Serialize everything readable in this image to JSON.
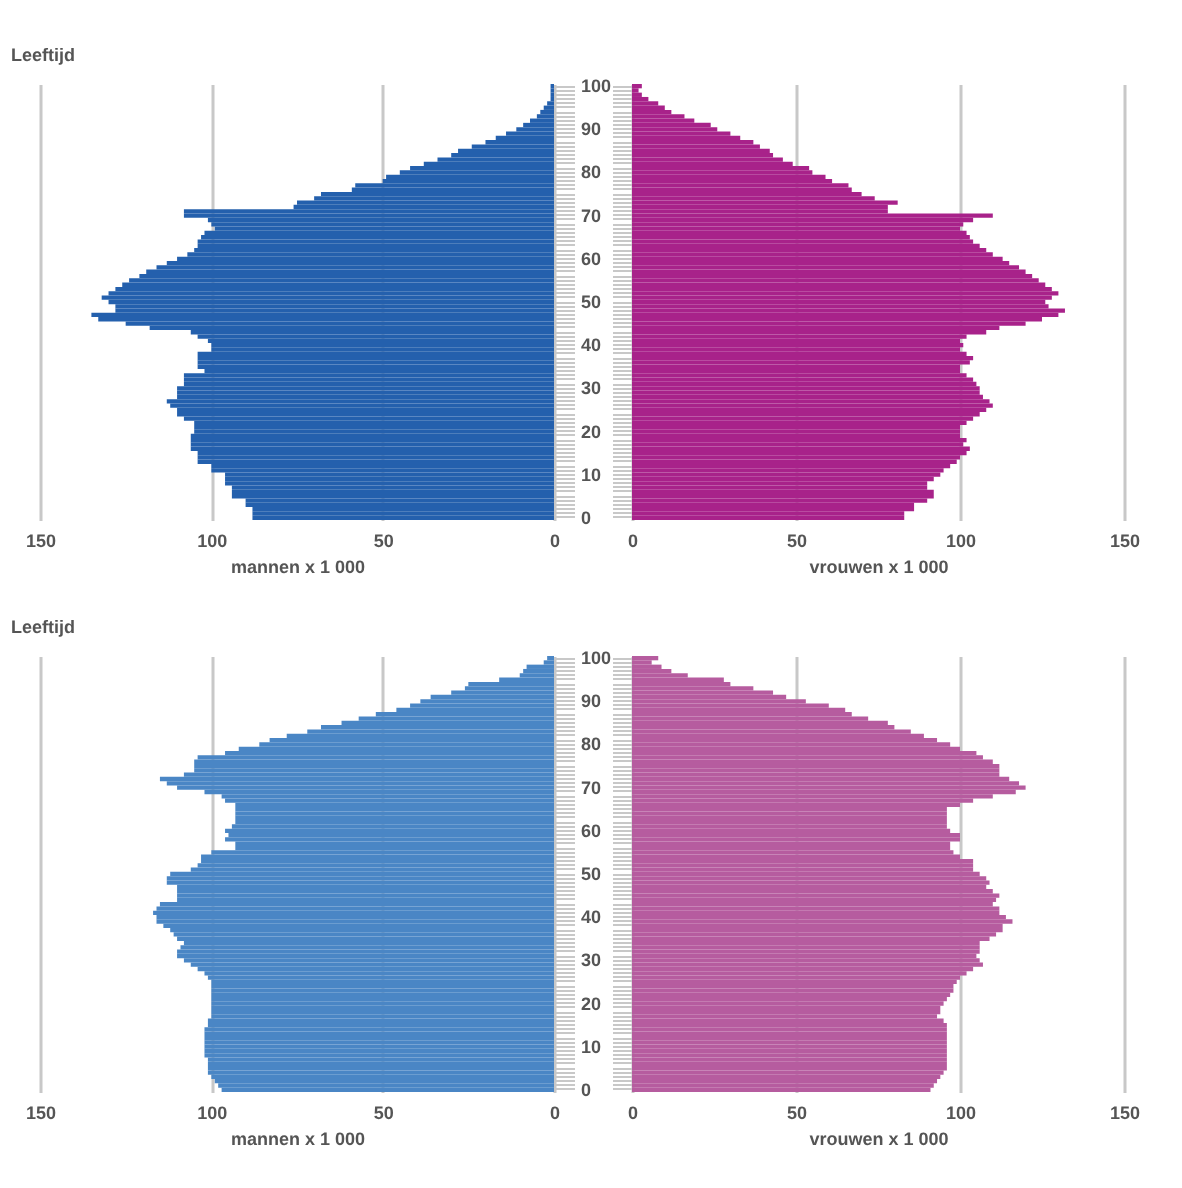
{
  "chart_data": [
    {
      "type": "bar",
      "orientation": "horizontal",
      "ylabel": "Leeftijd",
      "xlabel": "mannen x 1 000",
      "color": "#2460ad",
      "xlim": [
        150,
        0
      ],
      "xticks": [
        150,
        100,
        50,
        0
      ],
      "grid": "x",
      "categories": [
        "100",
        null,
        null,
        null,
        null,
        null,
        null,
        null,
        null,
        null,
        "90",
        null,
        null,
        null,
        null,
        null,
        null,
        null,
        null,
        null,
        "80",
        null,
        null,
        null,
        null,
        null,
        null,
        null,
        null,
        null,
        "70",
        null,
        null,
        null,
        null,
        null,
        null,
        null,
        null,
        null,
        "60",
        null,
        null,
        null,
        null,
        null,
        null,
        null,
        null,
        null,
        "50",
        null,
        null,
        null,
        null,
        null,
        null,
        null,
        null,
        null,
        "40",
        null,
        null,
        null,
        null,
        null,
        null,
        null,
        null,
        null,
        "30",
        null,
        null,
        null,
        null,
        null,
        null,
        null,
        null,
        null,
        "20",
        null,
        null,
        null,
        null,
        null,
        null,
        null,
        null,
        null,
        "10",
        null,
        null,
        null,
        null,
        null,
        null,
        null,
        null,
        null,
        "0"
      ],
      "values": [
        1,
        1,
        1,
        1,
        2,
        3,
        4,
        5,
        7,
        9,
        11,
        14,
        17,
        20,
        24,
        28,
        30,
        34,
        38,
        42,
        45,
        49,
        50,
        58,
        59,
        68,
        70,
        75,
        76,
        108,
        108,
        101,
        100,
        99,
        102,
        103,
        104,
        104,
        105,
        107,
        110,
        113,
        116,
        119,
        121,
        124,
        126,
        128,
        130,
        132,
        130,
        128,
        128,
        135,
        133,
        125,
        118,
        106,
        104,
        101,
        100,
        100,
        104,
        104,
        104,
        104,
        102,
        108,
        108,
        108,
        110,
        110,
        110,
        113,
        112,
        110,
        110,
        108,
        105,
        105,
        105,
        106,
        106,
        106,
        106,
        104,
        104,
        104,
        100,
        100,
        96,
        96,
        96,
        94,
        94,
        94,
        90,
        90,
        88,
        88,
        88
      ]
    },
    {
      "type": "bar",
      "orientation": "horizontal",
      "xlabel": "vrouwen x 1 000",
      "color": "#a8228a",
      "xlim": [
        0,
        150
      ],
      "xticks": [
        0,
        50,
        100,
        150
      ],
      "grid": "x",
      "tick_labels": "x",
      "categories": [
        "100",
        null,
        null,
        null,
        null,
        null,
        null,
        null,
        null,
        null,
        "90",
        null,
        null,
        null,
        null,
        null,
        null,
        null,
        null,
        null,
        "80",
        null,
        null,
        null,
        null,
        null,
        null,
        null,
        null,
        null,
        "70",
        null,
        null,
        null,
        null,
        null,
        null,
        null,
        null,
        null,
        "60",
        null,
        null,
        null,
        null,
        null,
        null,
        null,
        null,
        null,
        "50",
        null,
        null,
        null,
        null,
        null,
        null,
        null,
        null,
        null,
        "40",
        null,
        null,
        null,
        null,
        null,
        null,
        null,
        null,
        null,
        "30",
        null,
        null,
        null,
        null,
        null,
        null,
        null,
        null,
        null,
        "20",
        null,
        null,
        null,
        null,
        null,
        null,
        null,
        null,
        null,
        "10",
        null,
        null,
        null,
        null,
        null,
        null,
        null,
        null,
        null,
        "0"
      ],
      "values": [
        3,
        2,
        3,
        5,
        8,
        10,
        12,
        16,
        19,
        24,
        26,
        30,
        33,
        37,
        39,
        42,
        43,
        46,
        49,
        54,
        55,
        59,
        61,
        66,
        67,
        70,
        74,
        81,
        78,
        78,
        110,
        104,
        101,
        100,
        102,
        103,
        104,
        106,
        108,
        110,
        113,
        115,
        118,
        120,
        122,
        124,
        126,
        128,
        130,
        128,
        126,
        127,
        132,
        130,
        125,
        120,
        112,
        108,
        102,
        100,
        101,
        100,
        102,
        104,
        103,
        100,
        100,
        102,
        104,
        105,
        106,
        106,
        107,
        109,
        110,
        108,
        106,
        104,
        102,
        100,
        100,
        100,
        102,
        101,
        103,
        102,
        100,
        99,
        97,
        95,
        94,
        92,
        90,
        90,
        92,
        92,
        90,
        86,
        86,
        83,
        83
      ]
    },
    {
      "type": "bar",
      "orientation": "horizontal",
      "ylabel": "Leeftijd",
      "xlabel": "mannen x 1 000",
      "color": "#4a86c5",
      "xlim": [
        150,
        0
      ],
      "xticks": [
        150,
        100,
        50,
        0
      ],
      "grid": "x",
      "categories": [
        "100",
        null,
        null,
        null,
        null,
        null,
        null,
        null,
        null,
        null,
        "90",
        null,
        null,
        null,
        null,
        null,
        null,
        null,
        null,
        null,
        "80",
        null,
        null,
        null,
        null,
        null,
        null,
        null,
        null,
        null,
        "70",
        null,
        null,
        null,
        null,
        null,
        null,
        null,
        null,
        null,
        "60",
        null,
        null,
        null,
        null,
        null,
        null,
        null,
        null,
        null,
        "50",
        null,
        null,
        null,
        null,
        null,
        null,
        null,
        null,
        null,
        "40",
        null,
        null,
        null,
        null,
        null,
        null,
        null,
        null,
        null,
        "30",
        null,
        null,
        null,
        null,
        null,
        null,
        null,
        null,
        null,
        "20",
        null,
        null,
        null,
        null,
        null,
        null,
        null,
        null,
        null,
        "10",
        null,
        null,
        null,
        null,
        null,
        null,
        null,
        null,
        null,
        "0"
      ],
      "values": [
        2,
        3,
        8,
        9,
        10,
        16,
        25,
        26,
        30,
        36,
        39,
        42,
        46,
        52,
        57,
        62,
        68,
        72,
        78,
        83,
        86,
        92,
        96,
        104,
        105,
        105,
        105,
        108,
        115,
        113,
        110,
        102,
        97,
        96,
        93,
        93,
        93,
        93,
        93,
        94,
        96,
        95,
        96,
        93,
        93,
        100,
        103,
        103,
        104,
        106,
        112,
        113,
        113,
        110,
        110,
        110,
        110,
        115,
        116,
        117,
        116,
        116,
        114,
        112,
        111,
        110,
        108,
        109,
        110,
        110,
        108,
        106,
        104,
        102,
        101,
        100,
        100,
        100,
        100,
        100,
        100,
        100,
        100,
        100,
        101,
        101,
        102,
        102,
        102,
        102,
        102,
        102,
        102,
        101,
        101,
        101,
        101,
        100,
        99,
        98,
        97
      ]
    },
    {
      "type": "bar",
      "orientation": "horizontal",
      "xlabel": "vrouwen x 1 000",
      "color": "#b65c9f",
      "xlim": [
        0,
        150
      ],
      "xticks": [
        0,
        50,
        100,
        150
      ],
      "grid": "x",
      "tick_labels": "x",
      "categories": [
        "100",
        null,
        null,
        null,
        null,
        null,
        null,
        null,
        null,
        null,
        "90",
        null,
        null,
        null,
        null,
        null,
        null,
        null,
        null,
        null,
        "80",
        null,
        null,
        null,
        null,
        null,
        null,
        null,
        null,
        null,
        "70",
        null,
        null,
        null,
        null,
        null,
        null,
        null,
        null,
        null,
        "60",
        null,
        null,
        null,
        null,
        null,
        null,
        null,
        null,
        null,
        "50",
        null,
        null,
        null,
        null,
        null,
        null,
        null,
        null,
        null,
        "40",
        null,
        null,
        null,
        null,
        null,
        null,
        null,
        null,
        null,
        "30",
        null,
        null,
        null,
        null,
        null,
        null,
        null,
        null,
        null,
        "20",
        null,
        null,
        null,
        null,
        null,
        null,
        null,
        null,
        null,
        "10",
        null,
        null,
        null,
        null,
        null,
        null,
        null,
        null,
        null,
        "0"
      ],
      "values": [
        8,
        6,
        9,
        12,
        17,
        28,
        30,
        37,
        43,
        47,
        53,
        60,
        65,
        67,
        72,
        78,
        80,
        85,
        89,
        93,
        97,
        100,
        105,
        107,
        110,
        112,
        112,
        112,
        115,
        118,
        120,
        117,
        110,
        104,
        100,
        96,
        96,
        96,
        96,
        96,
        97,
        100,
        100,
        97,
        97,
        98,
        100,
        104,
        104,
        104,
        106,
        108,
        109,
        108,
        110,
        112,
        111,
        110,
        112,
        112,
        114,
        116,
        113,
        113,
        111,
        109,
        106,
        106,
        106,
        105,
        106,
        107,
        104,
        102,
        100,
        99,
        98,
        98,
        97,
        96,
        95,
        94,
        94,
        93,
        95,
        96,
        96,
        96,
        96,
        96,
        96,
        96,
        96,
        96,
        96,
        96,
        95,
        94,
        93,
        92,
        91
      ]
    }
  ]
}
